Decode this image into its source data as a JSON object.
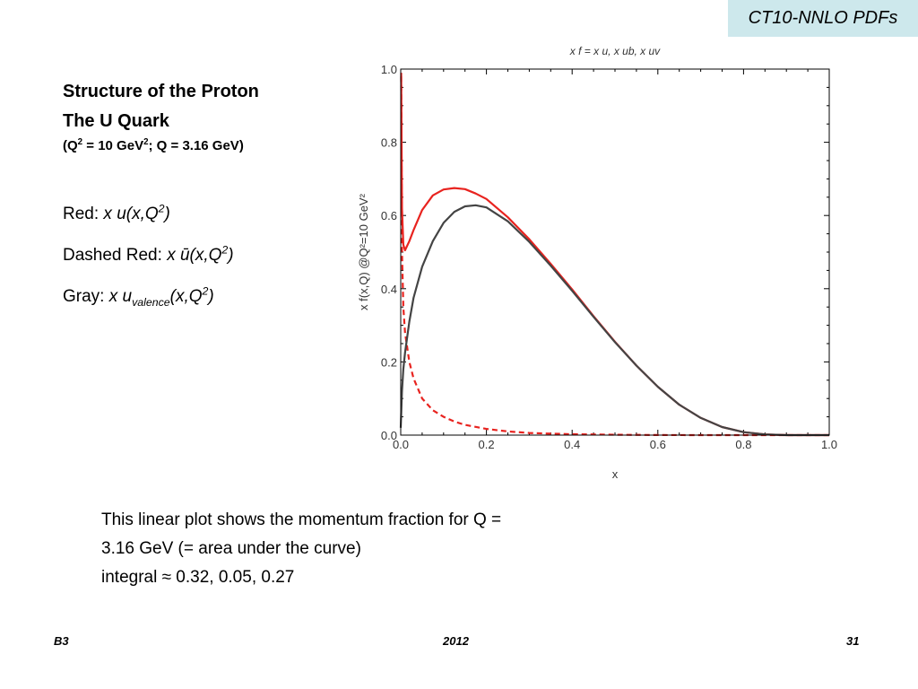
{
  "slide": {
    "tag": "CT10-NNLO PDFs",
    "heading1": "Structure of the Proton",
    "heading2": "The U Quark",
    "subheading": {
      "p1": "(Q",
      "sup1": "2",
      "p2": " = 10 GeV",
      "sup2": "2",
      "p3": "; Q = 3.16 GeV)"
    },
    "legend_lines": {
      "red": {
        "label": "Red: ",
        "expr": "x u(x,Q",
        "sup": "2",
        "close": ")"
      },
      "dashed": {
        "label": "Dashed Red: ",
        "expr": "x ū(x,Q",
        "sup": "2",
        "close": ")"
      },
      "gray": {
        "label": "Gray: ",
        "expr1": "x u",
        "sub": "valence",
        "expr2": "(x,Q",
        "sup": "2",
        "close": ")"
      }
    },
    "note": {
      "line1": "This linear plot shows the momentum fraction for Q =",
      "line2": "3.16 GeV (= area under the curve)",
      "line3": "integral  ≈    0.32,    0.05,    0.27"
    },
    "footer": {
      "left": "B3",
      "center": "2012",
      "right": "31"
    }
  },
  "chart_data": {
    "type": "line",
    "title": "x f = x u, x ub, x uv",
    "xlabel": "x",
    "ylabel": "x f(x,Q) @Q²=10 GeV²",
    "xlim": [
      0,
      1
    ],
    "ylim": [
      0,
      1
    ],
    "xticks": [
      "0.0",
      "0.2",
      "0.4",
      "0.6",
      "0.8",
      "1.0"
    ],
    "yticks": [
      "0.0",
      "0.2",
      "0.4",
      "0.6",
      "0.8",
      "1.0"
    ],
    "series": [
      {
        "style": "solid",
        "color": "#e8231f",
        "x": [
          0.001,
          0.003,
          0.006,
          0.01,
          0.02,
          0.03,
          0.05,
          0.075,
          0.1,
          0.125,
          0.15,
          0.175,
          0.2,
          0.25,
          0.3,
          0.35,
          0.4,
          0.45,
          0.5,
          0.55,
          0.6,
          0.65,
          0.7,
          0.75,
          0.8,
          0.85,
          0.9,
          0.95,
          1.0
        ],
        "y": [
          0.99,
          0.62,
          0.52,
          0.505,
          0.53,
          0.56,
          0.615,
          0.655,
          0.671,
          0.675,
          0.672,
          0.66,
          0.645,
          0.595,
          0.535,
          0.468,
          0.398,
          0.325,
          0.255,
          0.19,
          0.132,
          0.083,
          0.047,
          0.022,
          0.008,
          0.002,
          0.0,
          0.0,
          0.0
        ]
      },
      {
        "style": "dashed",
        "color": "#e8231f",
        "x": [
          0.001,
          0.003,
          0.006,
          0.01,
          0.02,
          0.03,
          0.05,
          0.075,
          0.1,
          0.125,
          0.15,
          0.2,
          0.25,
          0.3,
          0.35,
          0.4,
          0.5,
          0.6,
          0.7,
          0.8,
          0.9,
          1.0
        ],
        "y": [
          0.98,
          0.5,
          0.35,
          0.28,
          0.2,
          0.155,
          0.1,
          0.068,
          0.05,
          0.037,
          0.028,
          0.017,
          0.01,
          0.006,
          0.004,
          0.0025,
          0.001,
          0.0003,
          0.0,
          0.0,
          0.0,
          0.0
        ]
      },
      {
        "style": "solid",
        "color": "#444444",
        "x": [
          0.0,
          0.003,
          0.006,
          0.01,
          0.02,
          0.03,
          0.05,
          0.075,
          0.1,
          0.125,
          0.15,
          0.175,
          0.2,
          0.25,
          0.3,
          0.35,
          0.4,
          0.45,
          0.5,
          0.55,
          0.6,
          0.65,
          0.7,
          0.75,
          0.8,
          0.85,
          0.9,
          0.95,
          1.0
        ],
        "y": [
          0.02,
          0.12,
          0.18,
          0.225,
          0.31,
          0.375,
          0.46,
          0.53,
          0.58,
          0.61,
          0.625,
          0.628,
          0.622,
          0.584,
          0.528,
          0.463,
          0.394,
          0.323,
          0.254,
          0.19,
          0.132,
          0.083,
          0.047,
          0.022,
          0.008,
          0.002,
          0.0,
          0.0,
          0.0
        ]
      }
    ]
  }
}
